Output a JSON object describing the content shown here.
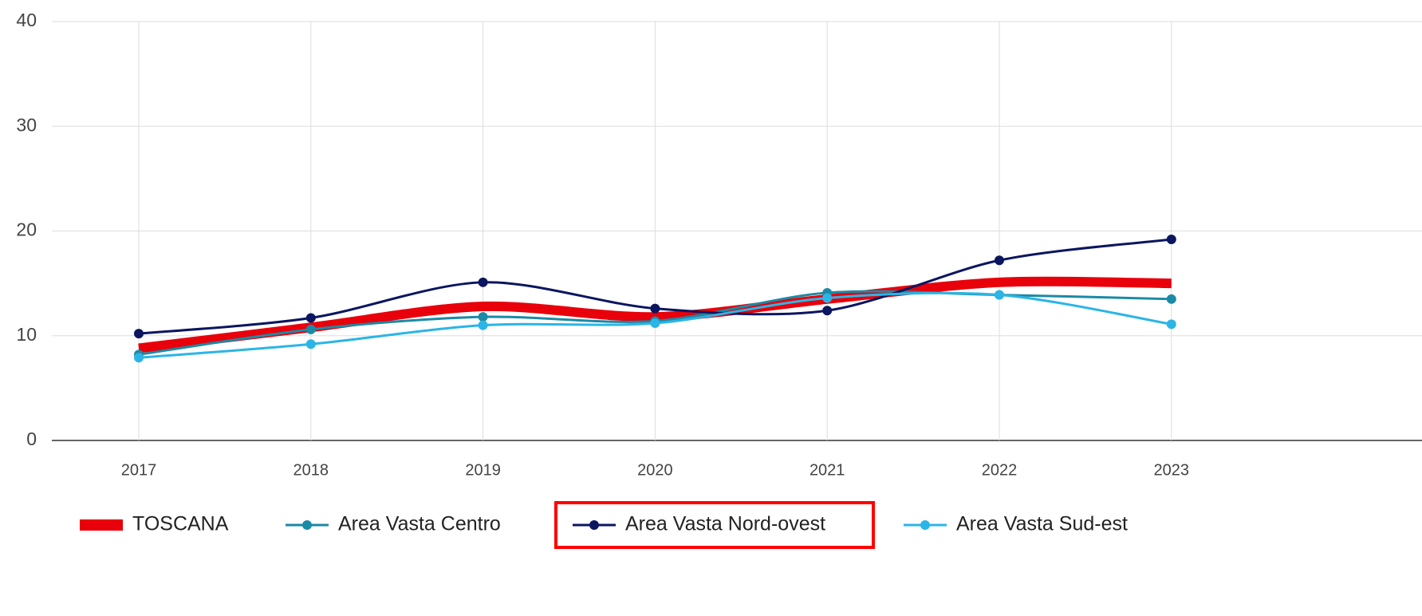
{
  "chart_data": {
    "type": "line",
    "categories": [
      "2017",
      "2018",
      "2019",
      "2020",
      "2021",
      "2022",
      "2023"
    ],
    "series": [
      {
        "name": "TOSCANA",
        "color": "#e8000b",
        "values": [
          8.8,
          10.8,
          12.8,
          11.8,
          13.5,
          15.1,
          15.0
        ]
      },
      {
        "name": "Area Vasta Centro",
        "color": "#1b8aa6",
        "values": [
          8.2,
          10.6,
          11.8,
          11.4,
          14.1,
          13.9,
          13.5
        ]
      },
      {
        "name": "Area Vasta Nord-ovest",
        "color": "#0b1660",
        "values": [
          10.2,
          11.7,
          15.1,
          12.6,
          12.4,
          17.2,
          19.2
        ]
      },
      {
        "name": "Area Vasta Sud-est",
        "color": "#2bb5e6",
        "values": [
          7.9,
          9.2,
          11.0,
          11.2,
          13.6,
          13.9,
          11.1
        ]
      }
    ],
    "ylim": [
      0,
      40
    ],
    "yticks": [
      0,
      10,
      20,
      30,
      40
    ],
    "grid": true,
    "legend": "bottom"
  }
}
